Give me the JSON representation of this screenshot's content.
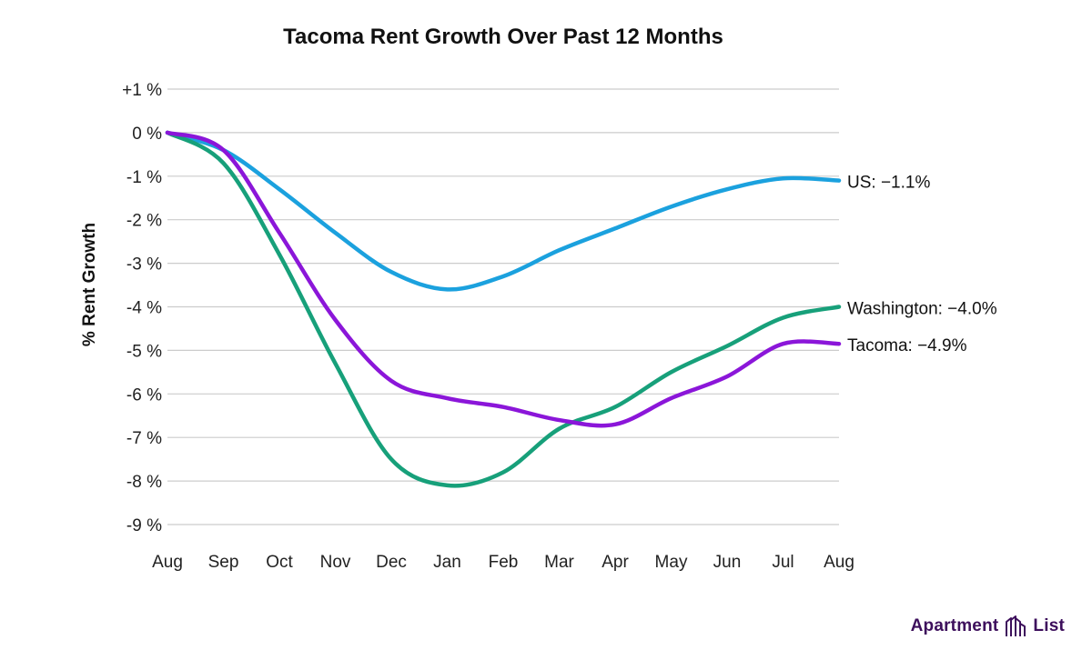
{
  "chart_data": {
    "type": "line",
    "title": "Tacoma Rent Growth Over Past 12 Months",
    "ylabel": "% Rent Growth",
    "xlabel": "",
    "categories": [
      "Aug",
      "Sep",
      "Oct",
      "Nov",
      "Dec",
      "Jan",
      "Feb",
      "Mar",
      "Apr",
      "May",
      "Jun",
      "Jul",
      "Aug"
    ],
    "y_ticks": [
      1,
      0,
      -1,
      -2,
      -3,
      -4,
      -5,
      -6,
      -7,
      -8,
      -9
    ],
    "y_tick_labels": [
      "+1 %",
      "0 %",
      "-1 %",
      "-2 %",
      "-3 %",
      "-4 %",
      "-5 %",
      "-6 %",
      "-7 %",
      "-8 %",
      "-9 %"
    ],
    "ylim": [
      -9,
      1
    ],
    "grid": true,
    "legend": "end-of-line labels",
    "series": [
      {
        "name": "US",
        "end_label": "US: −1.1%",
        "color": "#1ba1de",
        "values": [
          0,
          -0.4,
          -1.3,
          -2.3,
          -3.2,
          -3.6,
          -3.3,
          -2.7,
          -2.2,
          -1.7,
          -1.3,
          -1.05,
          -1.1
        ]
      },
      {
        "name": "Washington",
        "end_label": "Washington: −4.0%",
        "color": "#17a07a",
        "values": [
          0,
          -0.7,
          -2.8,
          -5.3,
          -7.5,
          -8.1,
          -7.8,
          -6.8,
          -6.3,
          -5.5,
          -4.9,
          -4.25,
          -4.0
        ]
      },
      {
        "name": "Tacoma",
        "end_label": "Tacoma: −4.9%",
        "color": "#8b16d9",
        "values": [
          0,
          -0.4,
          -2.3,
          -4.3,
          -5.7,
          -6.1,
          -6.3,
          -6.6,
          -6.7,
          -6.1,
          -5.6,
          -4.85,
          -4.85
        ]
      }
    ]
  },
  "brand": {
    "word_left": "Apartment",
    "word_right": "List",
    "icon": "apartment-list-logo-icon",
    "color": "#3d0f5c"
  }
}
